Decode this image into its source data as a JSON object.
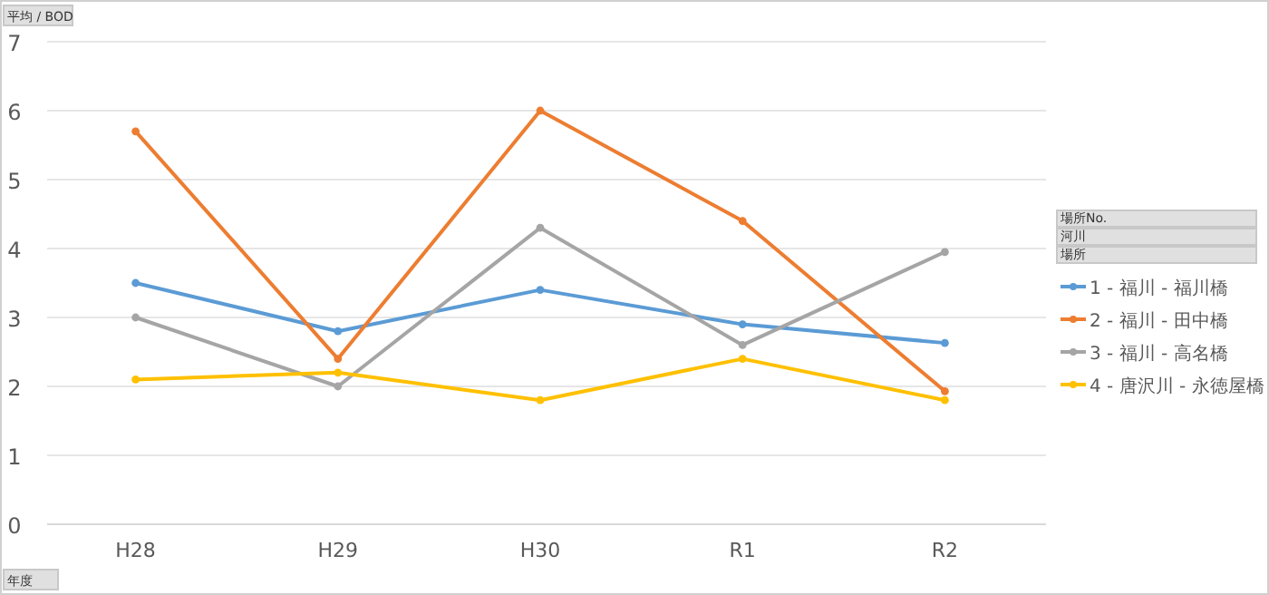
{
  "chart_data": {
    "type": "line",
    "ylabel": "平均 / BOD",
    "xlabel": "年度",
    "annotations": [
      "場所No.",
      "河川",
      "場所"
    ],
    "categories": [
      "H28",
      "H29",
      "H30",
      "R1",
      "R2"
    ],
    "series": [
      {
        "name": "1 - 福川 - 福川橋",
        "color": "#5b9bd5",
        "values": [
          3.5,
          2.8,
          3.4,
          2.9,
          2.63
        ]
      },
      {
        "name": "2 - 福川 - 田中橋",
        "color": "#ed7d31",
        "values": [
          5.7,
          2.4,
          6.0,
          4.4,
          1.93
        ]
      },
      {
        "name": "3 - 福川 - 高名橋",
        "color": "#a5a5a5",
        "values": [
          3.0,
          2.0,
          4.3,
          2.6,
          3.95
        ]
      },
      {
        "name": "4 - 唐沢川 - 永徳屋橋",
        "color": "#ffc000",
        "values": [
          2.1,
          2.2,
          1.8,
          2.4,
          1.8
        ]
      }
    ],
    "ylim": [
      0,
      7
    ],
    "yticks": [
      0,
      1,
      2,
      3,
      4,
      5,
      6,
      7
    ],
    "grid": "y",
    "legend": "right",
    "marker": "circle",
    "line_style": "solid"
  }
}
